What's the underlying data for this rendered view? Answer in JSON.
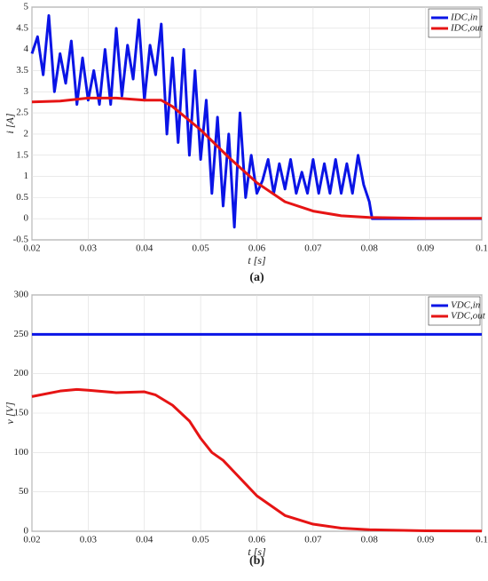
{
  "chart_data": [
    {
      "type": "line",
      "caption": "(a)",
      "xlabel": "t  [s]",
      "ylabel": "i  [A]",
      "xlim": [
        0.02,
        0.1
      ],
      "xticks": [
        0.02,
        0.03,
        0.04,
        0.05,
        0.06,
        0.07,
        0.08,
        0.09,
        0.1
      ],
      "ylim": [
        -0.5,
        5
      ],
      "yticks": [
        -0.5,
        0,
        0.5,
        1,
        1.5,
        2,
        2.5,
        3,
        3.5,
        4,
        4.5,
        5
      ],
      "grid": true,
      "legend": "top-right",
      "series": [
        {
          "name": "IDC,in",
          "color": "#0a14e6",
          "x": [
            0.02,
            0.021,
            0.022,
            0.023,
            0.024,
            0.025,
            0.026,
            0.027,
            0.028,
            0.029,
            0.03,
            0.031,
            0.032,
            0.033,
            0.034,
            0.035,
            0.036,
            0.037,
            0.038,
            0.039,
            0.04,
            0.041,
            0.042,
            0.043,
            0.044,
            0.045,
            0.046,
            0.047,
            0.048,
            0.049,
            0.05,
            0.051,
            0.052,
            0.053,
            0.054,
            0.055,
            0.056,
            0.057,
            0.058,
            0.059,
            0.06,
            0.061,
            0.062,
            0.063,
            0.064,
            0.065,
            0.066,
            0.067,
            0.068,
            0.069,
            0.07,
            0.071,
            0.072,
            0.073,
            0.074,
            0.075,
            0.076,
            0.077,
            0.078,
            0.079,
            0.08,
            0.0805,
            0.09,
            0.1
          ],
          "values": [
            3.9,
            4.3,
            3.4,
            4.8,
            3.0,
            3.9,
            3.2,
            4.2,
            2.7,
            3.8,
            2.8,
            3.5,
            2.7,
            4.0,
            2.7,
            4.5,
            2.9,
            4.1,
            3.3,
            4.7,
            2.8,
            4.1,
            3.4,
            4.6,
            2.0,
            3.8,
            1.8,
            4.0,
            1.5,
            3.5,
            1.4,
            2.8,
            0.6,
            2.4,
            0.3,
            2.0,
            -0.2,
            2.5,
            0.5,
            1.5,
            0.6,
            0.9,
            1.4,
            0.6,
            1.3,
            0.7,
            1.4,
            0.6,
            1.1,
            0.6,
            1.4,
            0.6,
            1.3,
            0.6,
            1.4,
            0.6,
            1.3,
            0.6,
            1.5,
            0.8,
            0.4,
            0,
            0,
            0
          ]
        },
        {
          "name": "IDC,out",
          "color": "#e61414",
          "x": [
            0.02,
            0.025,
            0.03,
            0.035,
            0.04,
            0.043,
            0.045,
            0.05,
            0.055,
            0.06,
            0.065,
            0.07,
            0.075,
            0.08,
            0.09,
            0.1
          ],
          "values": [
            2.76,
            2.78,
            2.85,
            2.85,
            2.8,
            2.8,
            2.65,
            2.1,
            1.45,
            0.85,
            0.4,
            0.18,
            0.07,
            0.03,
            0.01,
            0.01
          ]
        }
      ]
    },
    {
      "type": "line",
      "caption": "(b)",
      "xlabel": "t  [s]",
      "ylabel": "v  [V]",
      "xlim": [
        0.02,
        0.1
      ],
      "xticks": [
        0.02,
        0.03,
        0.04,
        0.05,
        0.06,
        0.07,
        0.08,
        0.09,
        0.1
      ],
      "ylim": [
        0,
        300
      ],
      "yticks": [
        0,
        50,
        100,
        150,
        200,
        250,
        300
      ],
      "grid": true,
      "legend": "top-right",
      "series": [
        {
          "name": "VDC,in",
          "color": "#0a14e6",
          "x": [
            0.02,
            0.1
          ],
          "values": [
            250,
            250
          ]
        },
        {
          "name": "VDC,out",
          "color": "#e61414",
          "x": [
            0.02,
            0.025,
            0.028,
            0.03,
            0.035,
            0.04,
            0.042,
            0.045,
            0.048,
            0.05,
            0.052,
            0.054,
            0.056,
            0.058,
            0.06,
            0.065,
            0.07,
            0.075,
            0.08,
            0.09,
            0.1
          ],
          "values": [
            171,
            178,
            180,
            179,
            176,
            177,
            173,
            160,
            140,
            118,
            100,
            90,
            75,
            60,
            45,
            20,
            9,
            4,
            2,
            0.5,
            0.3
          ]
        }
      ]
    }
  ]
}
